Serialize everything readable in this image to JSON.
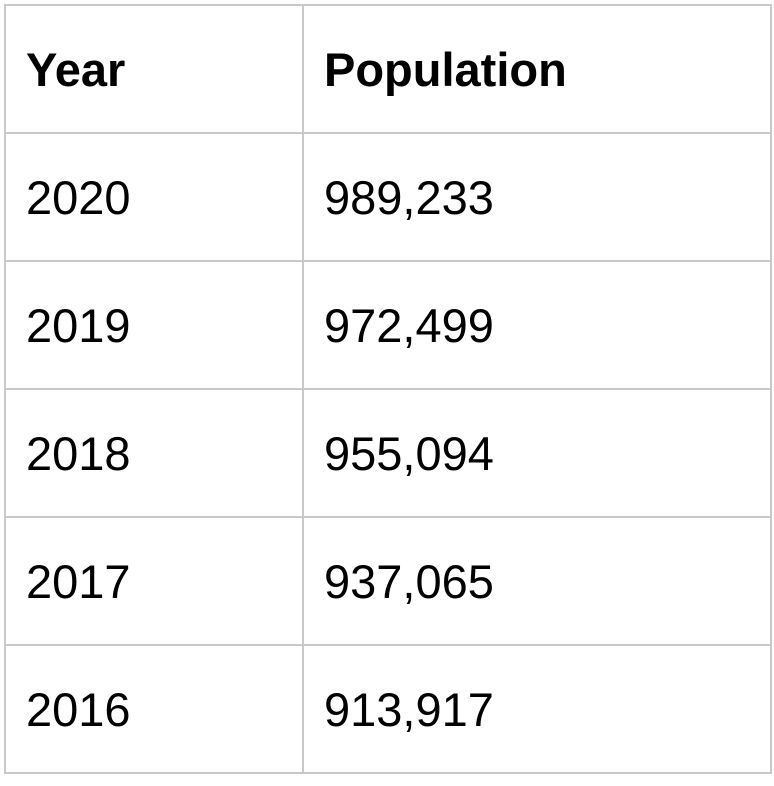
{
  "table": {
    "headers": [
      "Year",
      "Population"
    ],
    "rows": [
      [
        "2020",
        "989,233"
      ],
      [
        "2019",
        "972,499"
      ],
      [
        "2018",
        "955,094"
      ],
      [
        "2017",
        "937,065"
      ],
      [
        "2016",
        "913,917"
      ]
    ]
  }
}
